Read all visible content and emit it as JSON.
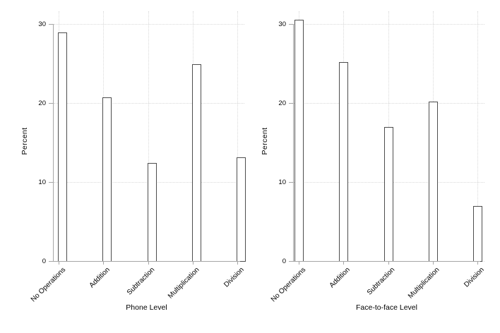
{
  "figure": {
    "description": "Two-panel bar chart of percent distributions by operation type",
    "ylabel": "Percent"
  },
  "chart_data": [
    {
      "type": "bar",
      "panel": "left",
      "title": "",
      "categories": [
        "No Operations",
        "Addition",
        "Subtraction",
        "Multiplication",
        "Division"
      ],
      "values": [
        28.9,
        20.7,
        12.4,
        24.9,
        13.1
      ],
      "xlabel": "Phone Level",
      "ylabel": "Percent",
      "ylim": [
        0,
        31
      ],
      "yticks": [
        0,
        10,
        20,
        30
      ],
      "grid": "dotted horizontal and vertical gridlines",
      "legend": "none",
      "bar_style": "white fill, dark gray outline"
    },
    {
      "type": "bar",
      "panel": "right",
      "title": "",
      "categories": [
        "No Operations",
        "Addition",
        "Subtraction",
        "Multiplication",
        "Division"
      ],
      "values": [
        30.5,
        25.2,
        17.0,
        20.2,
        7.0
      ],
      "xlabel": "Face-to-face Level",
      "ylabel": "Percent",
      "ylim": [
        0,
        31
      ],
      "yticks": [
        0,
        10,
        20,
        30
      ],
      "grid": "dotted horizontal and vertical gridlines",
      "legend": "none",
      "bar_style": "white fill, dark gray outline"
    }
  ],
  "colors": {
    "background": "#ffffff",
    "axis": "#a6a6a6",
    "grid": "#d9d9d9",
    "bar_fill": "#ffffff",
    "bar_outline": "#4d4d4d",
    "text": "#000000"
  }
}
